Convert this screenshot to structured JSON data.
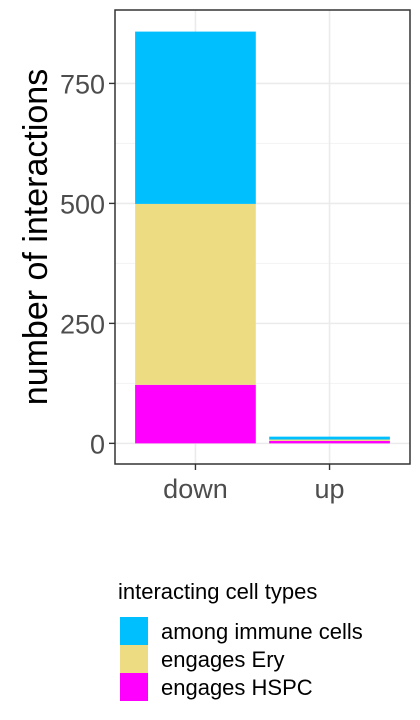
{
  "chart_data": {
    "type": "bar",
    "stacked": true,
    "categories": [
      "down",
      "up"
    ],
    "series": [
      {
        "name": "engages HSPC",
        "color": "#FF00FF",
        "values": [
          122,
          5
        ]
      },
      {
        "name": "engages Ery",
        "color": "#EEDC82",
        "values": [
          377,
          3
        ]
      },
      {
        "name": "among immune cells",
        "color": "#00BFFF",
        "values": [
          359,
          6
        ]
      }
    ],
    "ylabel": "number of interactions",
    "yticks": [
      0,
      250,
      500,
      750
    ],
    "ylim": [
      -43,
      903
    ],
    "grid": true,
    "legend": {
      "title": "interacting cell types",
      "placement": "bottom",
      "order": [
        "among immune cells",
        "engages Ery",
        "engages HSPC"
      ]
    }
  }
}
